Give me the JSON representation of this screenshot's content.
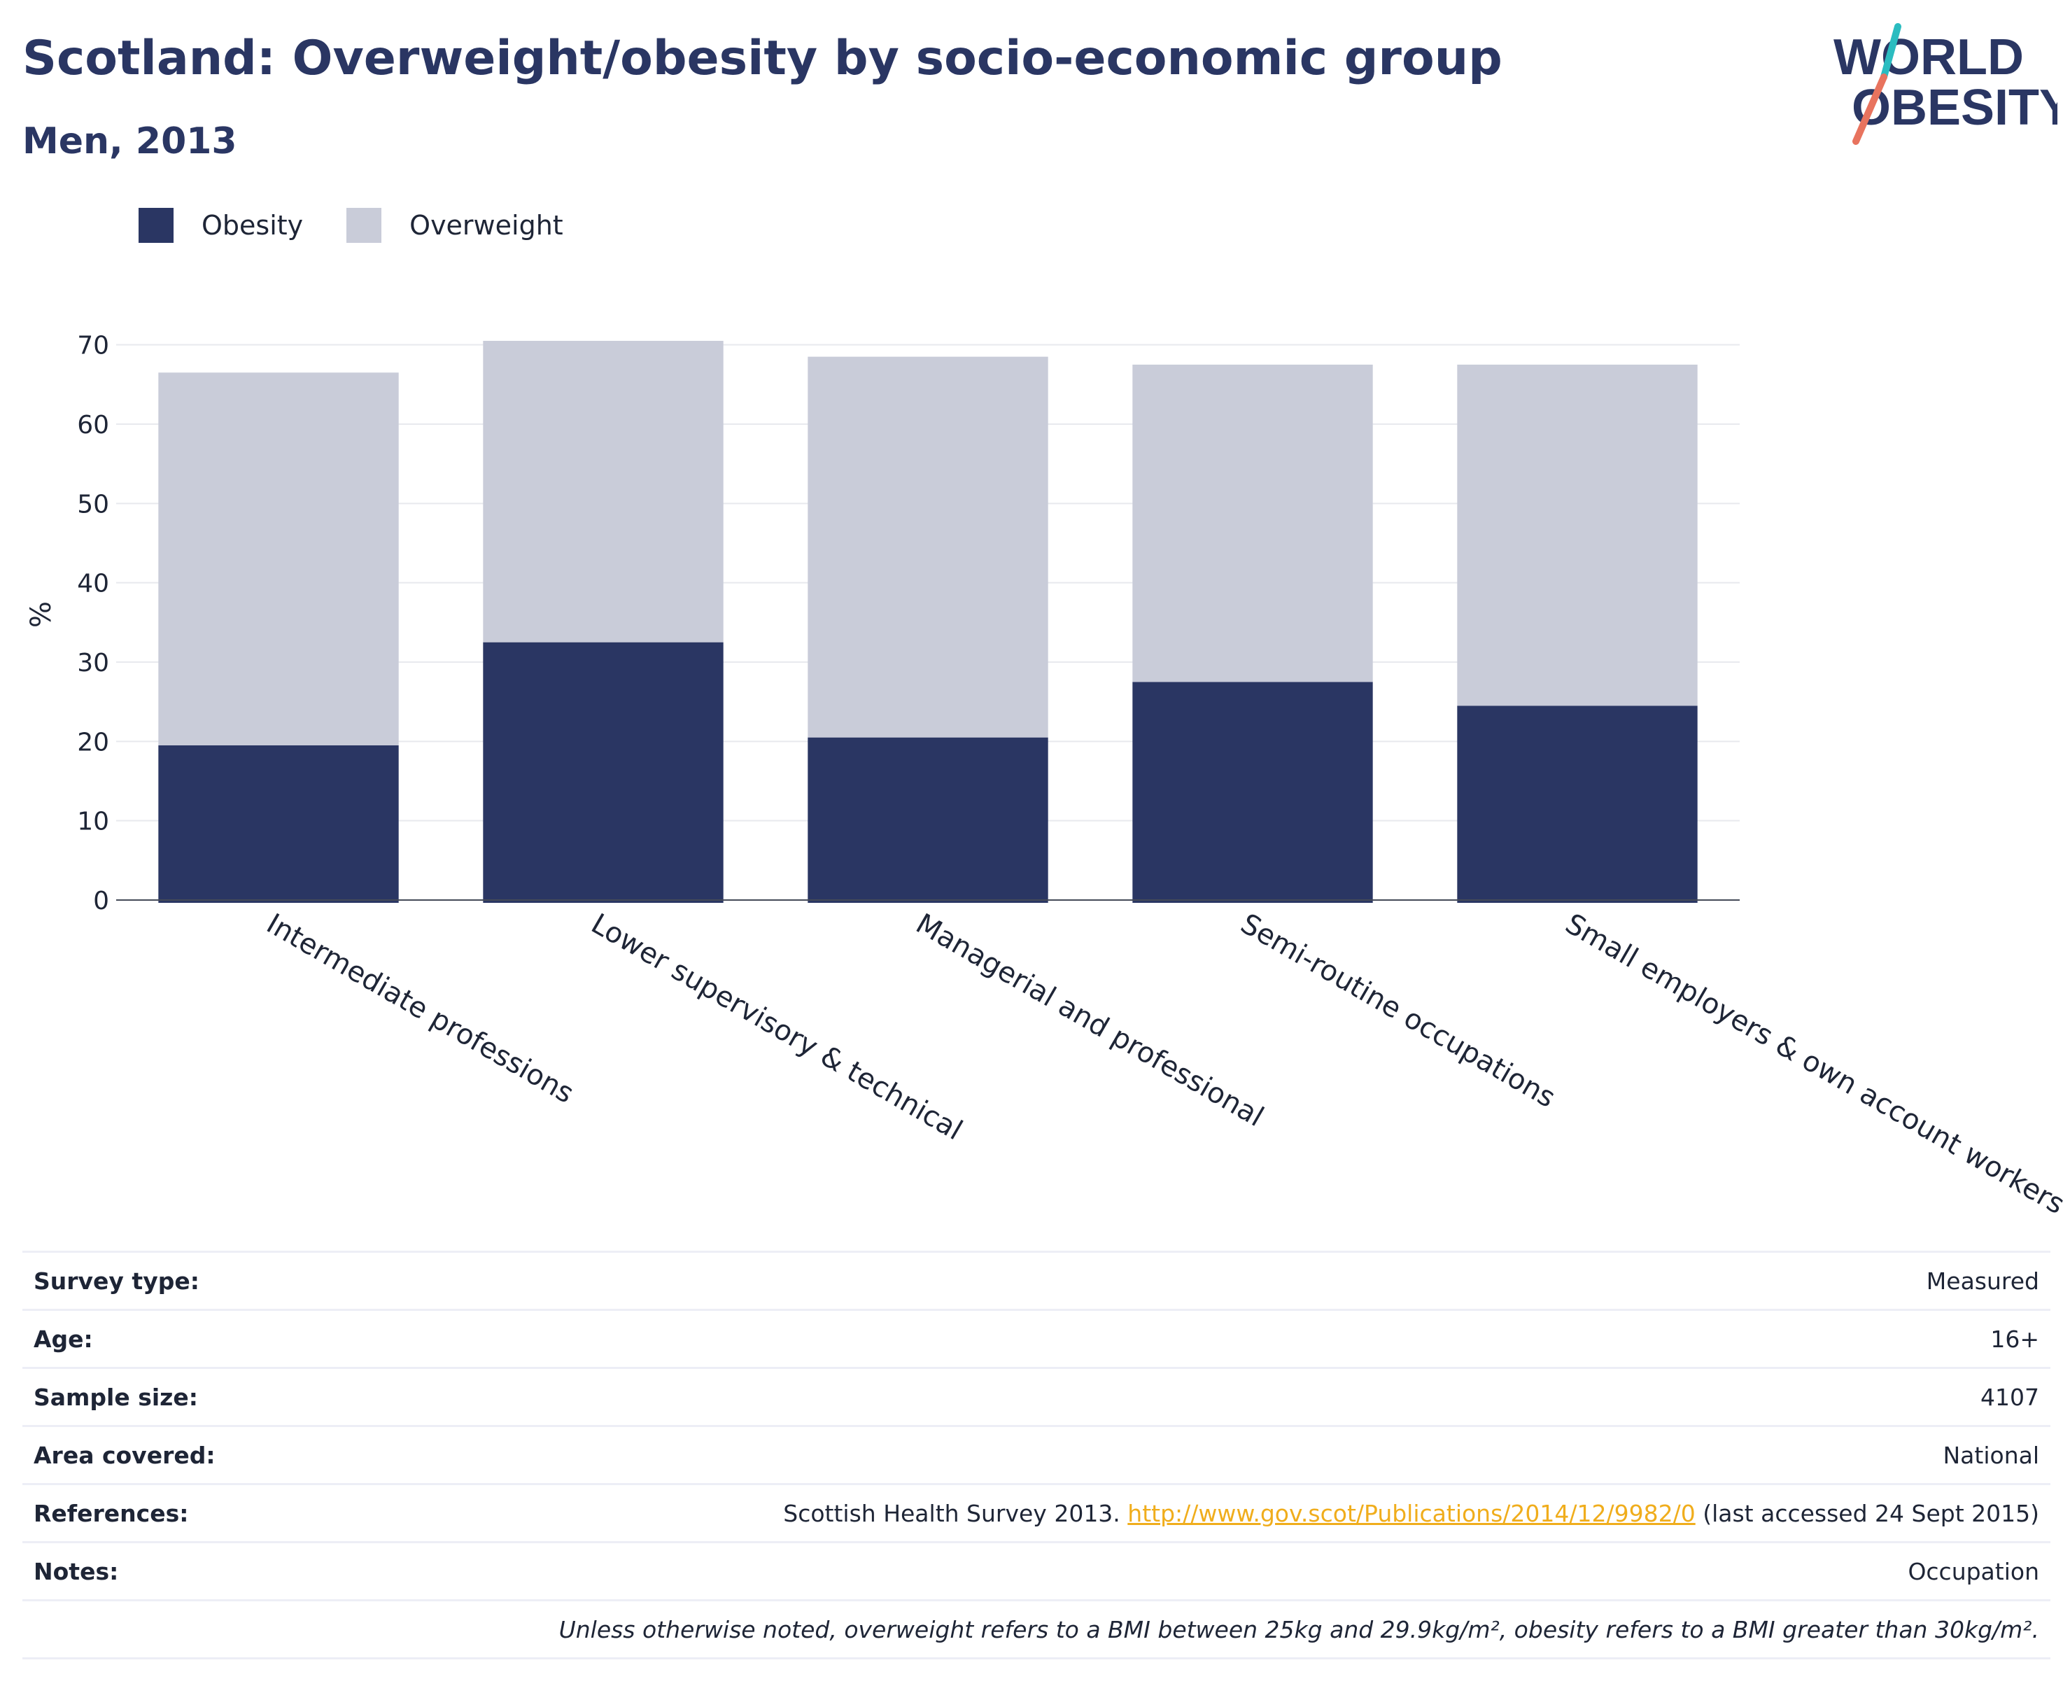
{
  "header": {
    "title": "Scotland: Overweight/obesity by socio-economic group",
    "subtitle": "Men, 2013",
    "logo_line1": "WORLD",
    "logo_line2": "OBESITY"
  },
  "colors": {
    "obesity": "#2a3663",
    "overweight": "#c9ccd9",
    "logo_teal": "#2bbcc0",
    "logo_coral": "#e8735e",
    "link": "#f0ad1c"
  },
  "chart_data": {
    "type": "bar",
    "stacked": true,
    "categories": [
      "Intermediate professions",
      "Lower supervisory & technical",
      "Managerial and professional",
      "Semi-routine occupations",
      "Small employers & own account workers"
    ],
    "series": [
      {
        "name": "Obesity",
        "values": [
          19.5,
          32.5,
          20.5,
          27.5,
          24.5
        ]
      },
      {
        "name": "Overweight",
        "values": [
          47.0,
          38.0,
          48.0,
          40.0,
          43.0
        ]
      }
    ],
    "title": "Scotland: Overweight/obesity by socio-economic group",
    "subtitle": "Men, 2013",
    "xlabel": "",
    "ylabel": "%",
    "ylim": [
      0,
      72
    ],
    "yticks": [
      0,
      10,
      20,
      30,
      40,
      50,
      60,
      70
    ],
    "grid": true,
    "legend": "top-left"
  },
  "info": {
    "rows": [
      {
        "label": "Survey type:",
        "value": "Measured"
      },
      {
        "label": "Age:",
        "value": "16+"
      },
      {
        "label": "Sample size:",
        "value": "4107"
      },
      {
        "label": "Area covered:",
        "value": "National"
      }
    ],
    "references": {
      "label": "References:",
      "prefix": "Scottish Health Survey 2013. ",
      "link": "http://www.gov.scot/Publications/2014/12/9982/0",
      "suffix": " (last accessed 24 Sept 2015)"
    },
    "notes": {
      "label": "Notes:",
      "value": "Occupation"
    },
    "footnote": "Unless otherwise noted, overweight refers to a BMI between 25kg and 29.9kg/m², obesity refers to a BMI greater than 30kg/m²."
  }
}
